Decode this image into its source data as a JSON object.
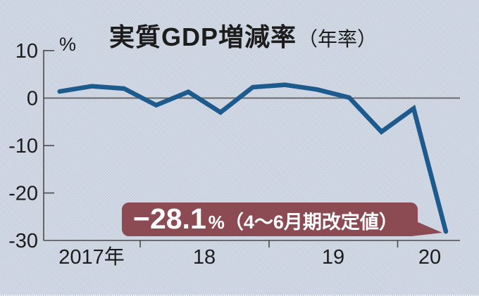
{
  "title": {
    "main": "実質GDP増減率",
    "sub": "（年率）"
  },
  "y_axis": {
    "unit": "%",
    "tick_labels": [
      "10",
      "0",
      "-10",
      "-20",
      "-30"
    ]
  },
  "x_axis": {
    "labels": [
      "2017年",
      "18",
      "19",
      "20"
    ]
  },
  "callout": {
    "value": "−28.1",
    "unit": "%",
    "note": "（4～6月期改定値）"
  },
  "colors": {
    "background": "#ccd4e1",
    "line": "#1d5b8e",
    "axis": "#4a4a4a",
    "zero_line": "#6b6b6b",
    "callout_bg": "#8c4a53",
    "callout_text": "#ffffff",
    "text": "#1c1c1c"
  },
  "chart_data": {
    "type": "line",
    "title": "実質GDP増減率（年率）",
    "ylabel": "%",
    "x": [
      "2017Q2",
      "2017Q3",
      "2017Q4",
      "2018Q1",
      "2018Q2",
      "2018Q3",
      "2018Q4",
      "2019Q1",
      "2019Q2",
      "2019Q3",
      "2019Q4",
      "2020Q1",
      "2020Q2"
    ],
    "values": [
      1.4,
      2.5,
      2.0,
      -1.5,
      1.3,
      -3.0,
      2.3,
      2.8,
      1.8,
      0.1,
      -7.1,
      -2.2,
      -28.1
    ],
    "ylim": [
      -30,
      10
    ],
    "y_ticks": [
      10,
      0,
      -10,
      -20,
      -30
    ],
    "x_tick_labels": [
      "2017年",
      "18",
      "19",
      "20"
    ],
    "grid": false,
    "legend": false,
    "zero_line": true,
    "annotation": {
      "text": "−28.1%（4～6月期改定値）",
      "target": "2020Q2"
    }
  }
}
